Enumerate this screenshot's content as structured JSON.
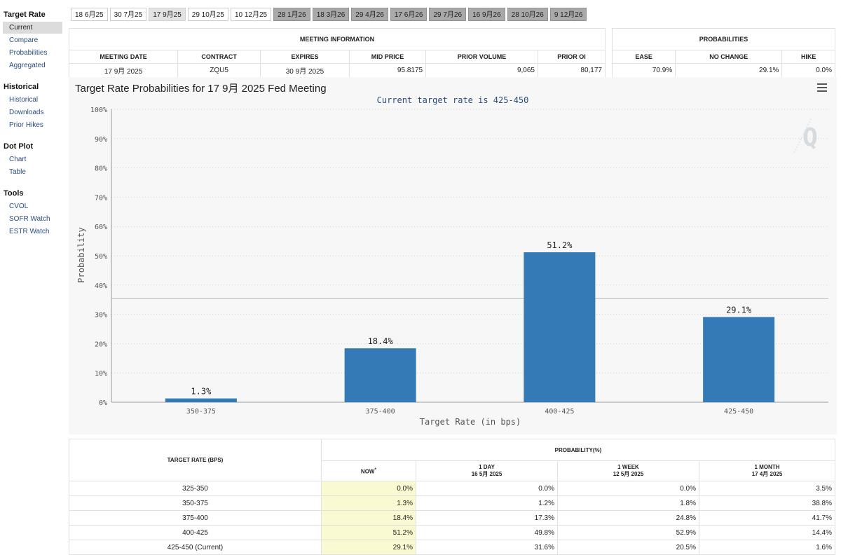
{
  "sidebar": {
    "sections": [
      {
        "title": "Target Rate",
        "items": [
          "Current",
          "Compare",
          "Probabilities",
          "Aggregated"
        ],
        "active": 0
      },
      {
        "title": "Historical",
        "items": [
          "Historical",
          "Downloads",
          "Prior Hikes"
        ],
        "active": -1
      },
      {
        "title": "Dot Plot",
        "items": [
          "Chart",
          "Table"
        ],
        "active": -1
      },
      {
        "title": "Tools",
        "items": [
          "CVOL",
          "SOFR Watch",
          "ESTR Watch"
        ],
        "active": -1
      }
    ]
  },
  "tabs": [
    {
      "label": "18 6月25",
      "state": "normal"
    },
    {
      "label": "30 7月25",
      "state": "normal"
    },
    {
      "label": "17 9月25",
      "state": "selected"
    },
    {
      "label": "29 10月25",
      "state": "normal"
    },
    {
      "label": "10 12月25",
      "state": "normal"
    },
    {
      "label": "28 1月26",
      "state": "future"
    },
    {
      "label": "18 3月26",
      "state": "future"
    },
    {
      "label": "29 4月26",
      "state": "future"
    },
    {
      "label": "17 6月26",
      "state": "future"
    },
    {
      "label": "29 7月26",
      "state": "future"
    },
    {
      "label": "16 9月26",
      "state": "future"
    },
    {
      "label": "28 10月26",
      "state": "future"
    },
    {
      "label": "9 12月26",
      "state": "future"
    }
  ],
  "meeting_info": {
    "header": "MEETING INFORMATION",
    "columns": [
      "MEETING DATE",
      "CONTRACT",
      "EXPIRES",
      "MID PRICE",
      "PRIOR VOLUME",
      "PRIOR OI"
    ],
    "values": [
      "17 9月 2025",
      "ZQU5",
      "30 9月 2025",
      "95.8175",
      "9,065",
      "80,177"
    ]
  },
  "probabilities": {
    "header": "PROBABILITIES",
    "columns": [
      "EASE",
      "NO CHANGE",
      "HIKE"
    ],
    "values": [
      "70.9%",
      "29.1%",
      "0.0%"
    ]
  },
  "chart_title": "Target Rate Probabilities for 17 9月 2025 Fed Meeting",
  "chart_data": {
    "type": "bar",
    "subtitle": "Current target rate is 425-450",
    "categories": [
      "350-375",
      "375-400",
      "400-425",
      "425-450"
    ],
    "values": [
      1.3,
      18.4,
      51.2,
      29.1
    ],
    "data_labels": [
      "1.3%",
      "18.4%",
      "51.2%",
      "29.1%"
    ],
    "xlabel": "Target Rate (in bps)",
    "ylabel": "Probability",
    "ylim": [
      0,
      100
    ],
    "yticks": [
      "0%",
      "10%",
      "20%",
      "30%",
      "40%",
      "50%",
      "60%",
      "70%",
      "80%",
      "90%",
      "100%"
    ],
    "reference_line": 35.5,
    "bar_color": "#337ab7"
  },
  "bottom_table": {
    "col_header": "TARGET RATE (BPS)",
    "prob_header": "PROBABILITY(%)",
    "now_label": "NOW",
    "now_mark": "*",
    "periods": [
      {
        "label": "1 DAY",
        "date": "16 5月 2025"
      },
      {
        "label": "1 WEEK",
        "date": "12 5月 2025"
      },
      {
        "label": "1 MONTH",
        "date": "17 4月 2025"
      }
    ],
    "rows": [
      {
        "rate": "325-350",
        "now": "0.0%",
        "d1": "0.0%",
        "w1": "0.0%",
        "m1": "3.5%"
      },
      {
        "rate": "350-375",
        "now": "1.3%",
        "d1": "1.2%",
        "w1": "1.8%",
        "m1": "38.8%"
      },
      {
        "rate": "375-400",
        "now": "18.4%",
        "d1": "17.3%",
        "w1": "24.8%",
        "m1": "41.7%"
      },
      {
        "rate": "400-425",
        "now": "51.2%",
        "d1": "49.8%",
        "w1": "52.9%",
        "m1": "14.4%"
      },
      {
        "rate": "425-450 (Current)",
        "now": "29.1%",
        "d1": "31.6%",
        "w1": "20.5%",
        "m1": "1.6%"
      }
    ]
  }
}
